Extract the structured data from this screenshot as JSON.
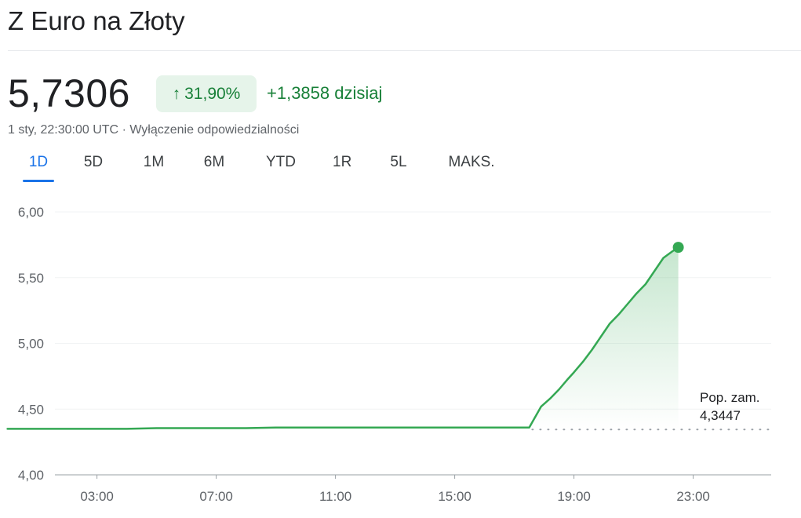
{
  "header": {
    "title": "Z Euro na Złoty"
  },
  "quote": {
    "price": "5,7306",
    "percent_change": "31,90%",
    "absolute_change": "+1,3858 dzisiaj",
    "timestamp": "1 sty, 22:30:00 UTC",
    "separator": "·",
    "disclaimer": "Wyłączenie odpowiedzialności"
  },
  "tabs": [
    {
      "label": "1D",
      "active": true
    },
    {
      "label": "5D",
      "active": false
    },
    {
      "label": "1M",
      "active": false
    },
    {
      "label": "6M",
      "active": false
    },
    {
      "label": "YTD",
      "active": false
    },
    {
      "label": "1R",
      "active": false
    },
    {
      "label": "5L",
      "active": false
    },
    {
      "label": "MAKS.",
      "active": false
    }
  ],
  "colors": {
    "positive": "#188038",
    "badge_bg": "#e6f4ea",
    "line": "#34a853",
    "active_tab": "#1a73e8",
    "grid": "#f1f3f4"
  },
  "icons": {
    "badge_arrow": "arrow-up-icon"
  },
  "chart_data": {
    "type": "area",
    "x_unit": "hours UTC",
    "xlim": [
      0,
      24
    ],
    "ylim": [
      4.0,
      6.0
    ],
    "y_ticks": [
      {
        "value": 4.0,
        "label": "4,00"
      },
      {
        "value": 4.5,
        "label": "4,50"
      },
      {
        "value": 5.0,
        "label": "5,00"
      },
      {
        "value": 5.5,
        "label": "5,50"
      },
      {
        "value": 6.0,
        "label": "6,00"
      }
    ],
    "x_ticks": [
      {
        "value": 3,
        "label": "03:00"
      },
      {
        "value": 7,
        "label": "07:00"
      },
      {
        "value": 11,
        "label": "11:00"
      },
      {
        "value": 15,
        "label": "15:00"
      },
      {
        "value": 19,
        "label": "19:00"
      },
      {
        "value": 23,
        "label": "23:00"
      }
    ],
    "previous_close": {
      "value": 4.3447,
      "label": "Pop. zam.",
      "value_label": "4,3447"
    },
    "series": [
      {
        "x": [
          0,
          1,
          2,
          3,
          4,
          5,
          6,
          7,
          8,
          9,
          10,
          11,
          12,
          13,
          14,
          15,
          16,
          17,
          17.5,
          17.6,
          17.9,
          18.2,
          18.5,
          18.8,
          19.0,
          19.3,
          19.6,
          19.9,
          20.2,
          20.5,
          20.8,
          21.1,
          21.4,
          21.7,
          22.0,
          22.3,
          22.5
        ],
        "y": [
          4.35,
          4.35,
          4.35,
          4.35,
          4.35,
          4.355,
          4.355,
          4.355,
          4.355,
          4.36,
          4.36,
          4.36,
          4.36,
          4.36,
          4.36,
          4.36,
          4.36,
          4.36,
          4.36,
          4.4,
          4.52,
          4.58,
          4.65,
          4.73,
          4.78,
          4.86,
          4.95,
          5.05,
          5.15,
          5.22,
          5.3,
          5.38,
          5.45,
          5.55,
          5.65,
          5.7,
          5.7306
        ]
      }
    ],
    "grid": true
  }
}
